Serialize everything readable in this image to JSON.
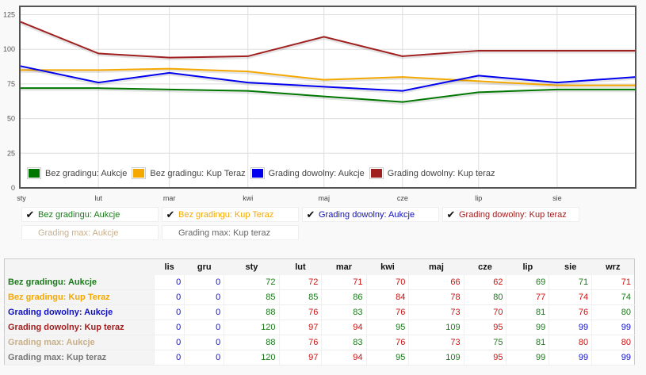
{
  "chart_data": {
    "type": "line",
    "categories": [
      "sty",
      "lut",
      "mar",
      "kwi",
      "maj",
      "cze",
      "lip",
      "sie",
      "wrz"
    ],
    "x_labels": [
      "sty",
      "lut",
      "mar",
      "kwi",
      "maj",
      "cze",
      "lip",
      "sie"
    ],
    "y_ticks": [
      0,
      25,
      50,
      75,
      100,
      125
    ],
    "ylim": [
      0,
      131
    ],
    "grid": true,
    "legend_placement": "bottom-left inside",
    "series": [
      {
        "name": "Bez gradingu: Aukcje",
        "color": "#007700",
        "values": [
          72,
          72,
          71,
          70,
          66,
          62,
          69,
          71,
          71
        ]
      },
      {
        "name": "Bez gradingu: Kup Teraz",
        "color": "#f5a800",
        "values": [
          85,
          85,
          86,
          84,
          78,
          80,
          77,
          74,
          74
        ]
      },
      {
        "name": "Grading dowolny: Aukcje",
        "color": "#0000ee",
        "values": [
          88,
          76,
          83,
          76,
          73,
          70,
          81,
          76,
          80
        ]
      },
      {
        "name": "Grading dowolny: Kup teraz",
        "color": "#a02020",
        "values": [
          120,
          97,
          94,
          95,
          109,
          95,
          99,
          99,
          99
        ]
      }
    ]
  },
  "toggles": [
    {
      "label": "Bez gradingu: Aukcje",
      "checked": true,
      "color": "#1a7a1a"
    },
    {
      "label": "Bez gradingu: Kup Teraz",
      "checked": true,
      "color": "#f5a800"
    },
    {
      "label": "Grading dowolny: Aukcje",
      "checked": true,
      "color": "#1010c0"
    },
    {
      "label": "Grading dowolny: Kup teraz",
      "checked": true,
      "color": "#a02020"
    },
    {
      "label": "Grading max: Aukcje",
      "checked": false,
      "color": "#c8b08a"
    },
    {
      "label": "Grading max: Kup teraz",
      "checked": false,
      "color": "#666666"
    }
  ],
  "table": {
    "headers": [
      "lis",
      "gru",
      "sty",
      "lut",
      "mar",
      "kwi",
      "maj",
      "cze",
      "lip",
      "sie",
      "wrz"
    ],
    "rows": [
      {
        "label": "Bez gradingu: Aukcje",
        "color": "#1a7a1a",
        "cells": [
          [
            "0",
            "b"
          ],
          [
            "0",
            "b"
          ],
          [
            "72",
            "g"
          ],
          [
            "72",
            "r"
          ],
          [
            "71",
            "r"
          ],
          [
            "70",
            "r"
          ],
          [
            "66",
            "r"
          ],
          [
            "62",
            "r"
          ],
          [
            "69",
            "g"
          ],
          [
            "71",
            "g"
          ],
          [
            "71",
            "r"
          ]
        ]
      },
      {
        "label": "Bez gradingu: Kup Teraz",
        "color": "#f5a800",
        "cells": [
          [
            "0",
            "b"
          ],
          [
            "0",
            "b"
          ],
          [
            "85",
            "g"
          ],
          [
            "85",
            "g"
          ],
          [
            "86",
            "g"
          ],
          [
            "84",
            "r"
          ],
          [
            "78",
            "r"
          ],
          [
            "80",
            "g"
          ],
          [
            "77",
            "r"
          ],
          [
            "74",
            "r"
          ],
          [
            "74",
            "g"
          ]
        ]
      },
      {
        "label": "Grading dowolny: Aukcje",
        "color": "#1010c0",
        "cells": [
          [
            "0",
            "b"
          ],
          [
            "0",
            "b"
          ],
          [
            "88",
            "g"
          ],
          [
            "76",
            "r"
          ],
          [
            "83",
            "g"
          ],
          [
            "76",
            "r"
          ],
          [
            "73",
            "r"
          ],
          [
            "70",
            "r"
          ],
          [
            "81",
            "g"
          ],
          [
            "76",
            "r"
          ],
          [
            "80",
            "g"
          ]
        ]
      },
      {
        "label": "Grading dowolny: Kup teraz",
        "color": "#a02020",
        "cells": [
          [
            "0",
            "b"
          ],
          [
            "0",
            "b"
          ],
          [
            "120",
            "g"
          ],
          [
            "97",
            "r"
          ],
          [
            "94",
            "r"
          ],
          [
            "95",
            "g"
          ],
          [
            "109",
            "g"
          ],
          [
            "95",
            "r"
          ],
          [
            "99",
            "g"
          ],
          [
            "99",
            "b"
          ],
          [
            "99",
            "b"
          ]
        ]
      },
      {
        "label": "Grading max: Aukcje",
        "color": "#c8b08a",
        "cells": [
          [
            "0",
            "b"
          ],
          [
            "0",
            "b"
          ],
          [
            "88",
            "g"
          ],
          [
            "76",
            "r"
          ],
          [
            "83",
            "g"
          ],
          [
            "76",
            "r"
          ],
          [
            "73",
            "r"
          ],
          [
            "75",
            "g"
          ],
          [
            "81",
            "g"
          ],
          [
            "80",
            "r"
          ],
          [
            "80",
            "r"
          ]
        ]
      },
      {
        "label": "Grading max: Kup teraz",
        "color": "#777777",
        "cells": [
          [
            "0",
            "b"
          ],
          [
            "0",
            "b"
          ],
          [
            "120",
            "g"
          ],
          [
            "97",
            "r"
          ],
          [
            "94",
            "r"
          ],
          [
            "95",
            "g"
          ],
          [
            "109",
            "g"
          ],
          [
            "95",
            "r"
          ],
          [
            "99",
            "g"
          ],
          [
            "99",
            "b"
          ],
          [
            "99",
            "b"
          ]
        ]
      }
    ]
  }
}
